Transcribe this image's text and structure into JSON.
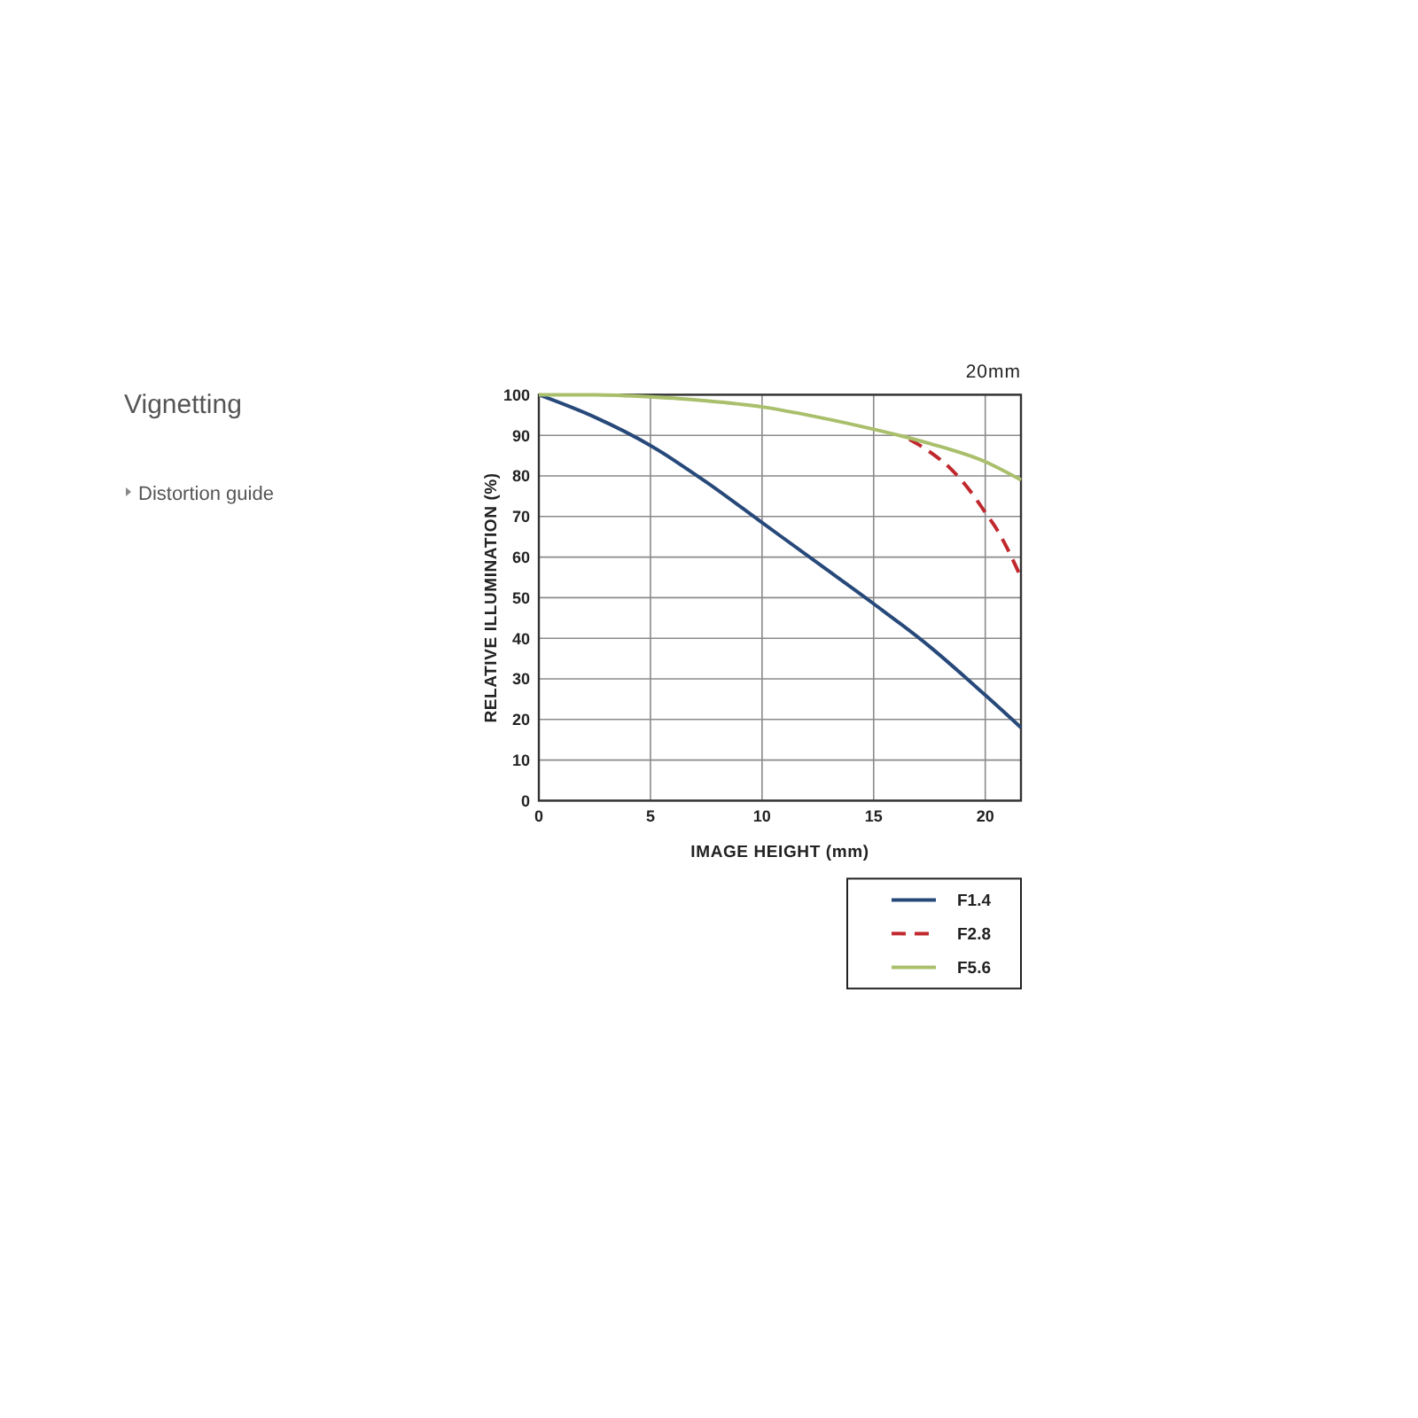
{
  "chart_data": {
    "type": "line",
    "title": "Vignetting",
    "subtitle": "20mm",
    "xlabel": "IMAGE HEIGHT (mm)",
    "ylabel": "RELATIVE ILLUMINATION (%)",
    "annotations": [
      "Distortion guide"
    ],
    "series": [
      {
        "name": "F1.4",
        "color": "#27497a",
        "x": [
          0,
          2.5,
          5,
          7.5,
          10,
          12.5,
          15,
          17.5,
          20,
          21.6
        ],
        "values": [
          100,
          94.5,
          87.5,
          78.5,
          68.5,
          58.5,
          48.5,
          38,
          26,
          18
        ]
      },
      {
        "name": "F2.8",
        "color": "#c0282d",
        "line_style": "dashed",
        "x": [
          16.6,
          17.5,
          18.5,
          19.5,
          20,
          20.5,
          21,
          21.6
        ],
        "values": [
          89,
          86,
          81.5,
          75,
          71,
          67,
          62,
          55
        ]
      },
      {
        "name": "F5.6",
        "color": "#a9bf6b",
        "x": [
          0,
          2.5,
          5,
          7.5,
          10,
          12.5,
          15,
          16.5,
          17.5,
          20,
          21.6
        ],
        "values": [
          100,
          100,
          99.5,
          98.5,
          97,
          94.5,
          91.5,
          89.5,
          88,
          83.5,
          79
        ]
      }
    ],
    "xlim": [
      0,
      21.6
    ],
    "xticks": [
      0,
      5,
      10,
      15,
      20
    ],
    "ylim": [
      0,
      100
    ],
    "yticks": [
      0,
      10,
      20,
      30,
      40,
      50,
      60,
      70,
      80,
      90,
      100
    ],
    "grid": true,
    "legend": "bottom right"
  }
}
